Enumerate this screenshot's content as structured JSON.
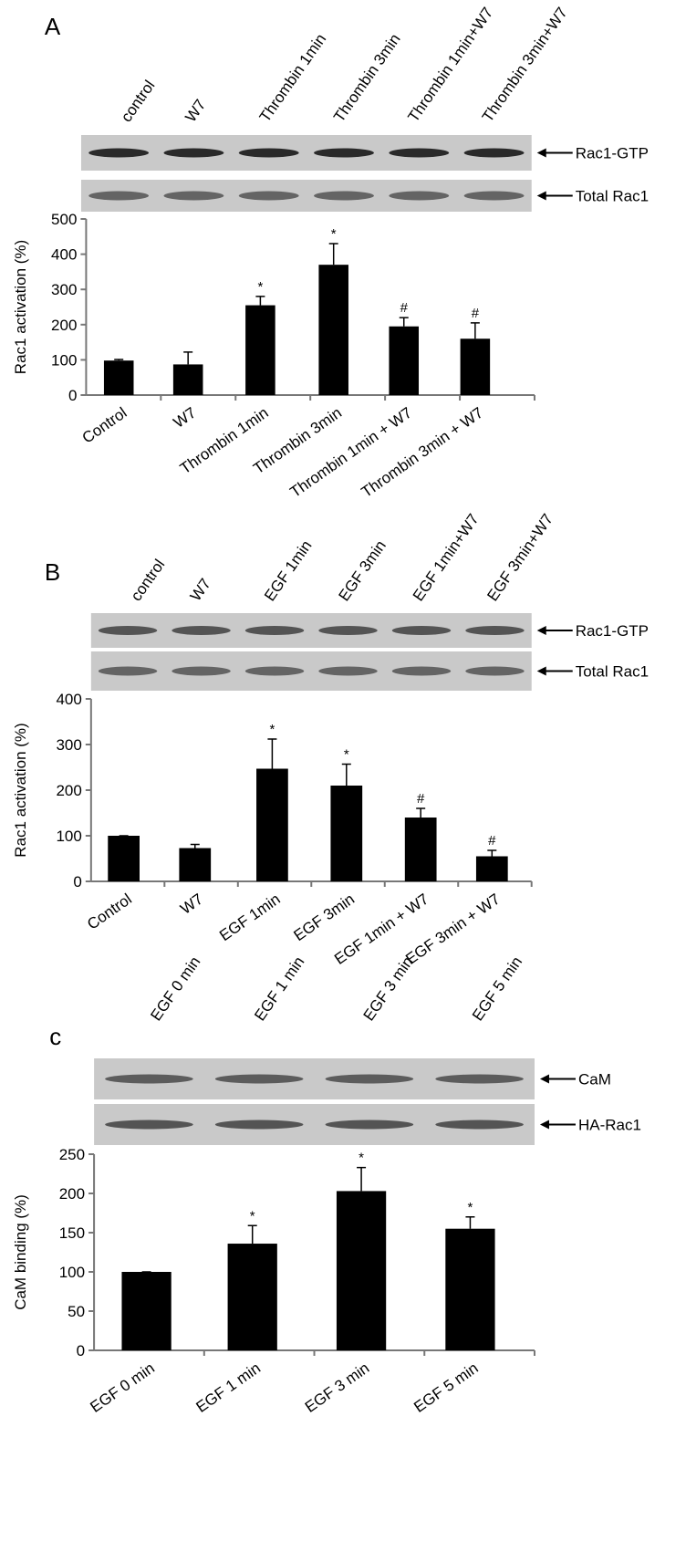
{
  "chart_data": [
    {
      "type": "bar",
      "panel": "A",
      "lanes": [
        "control",
        "W7",
        "Thrombin 1min",
        "Thrombin 3min",
        "Thrombin 1min+W7",
        "Thrombin 3min+W7"
      ],
      "blots": [
        "Rac1-GTP",
        "Total Rac1"
      ],
      "y_label": "Rac1 activation (%)",
      "categories": [
        "Control",
        "W7",
        "Thrombin 1min",
        "Thrombin 3min",
        "Thrombin 1min + W7",
        "Thrombin 3min + W7"
      ],
      "values": [
        98,
        87,
        255,
        370,
        195,
        160
      ],
      "errors": [
        3,
        35,
        25,
        60,
        25,
        45
      ],
      "markers": [
        null,
        null,
        "*",
        "*",
        "#",
        "#"
      ],
      "color": "#000000",
      "ylim": [
        0,
        500
      ],
      "yticks": [
        0,
        100,
        200,
        300,
        400,
        500
      ]
    },
    {
      "type": "bar",
      "panel": "B",
      "lanes": [
        "control",
        "W7",
        "EGF 1min",
        "EGF 3min",
        "EGF 1min+W7",
        "EGF 3min+W7"
      ],
      "blots": [
        "Rac1-GTP",
        "Total Rac1"
      ],
      "y_label": "Rac1 activation (%)",
      "categories": [
        "Control",
        "W7",
        "EGF 1min",
        "EGF 3min",
        "EGF 1min + W7",
        "EGF 3min + W7"
      ],
      "values": [
        100,
        73,
        247,
        210,
        140,
        55
      ],
      "errors": [
        0,
        8,
        65,
        47,
        20,
        13
      ],
      "markers": [
        null,
        null,
        "*",
        "*",
        "#",
        "#"
      ],
      "color": "#000000",
      "ylim": [
        0,
        400
      ],
      "yticks": [
        0,
        100,
        200,
        300,
        400
      ]
    },
    {
      "type": "bar",
      "panel": "c",
      "lanes": [
        "EGF 0 min",
        "EGF 1 min",
        "EGF 3 min",
        "EGF 5 min"
      ],
      "blots": [
        "CaM",
        "HA-Rac1"
      ],
      "y_label": "CaM binding (%)",
      "categories": [
        "EGF 0 min",
        "EGF 1 min",
        "EGF 3 min",
        "EGF 5 min"
      ],
      "values": [
        100,
        136,
        203,
        155
      ],
      "errors": [
        0,
        23,
        30,
        15
      ],
      "markers": [
        null,
        "*",
        "*",
        "*"
      ],
      "color": "#000000",
      "ylim": [
        0,
        250
      ],
      "yticks": [
        0,
        50,
        100,
        150,
        200,
        250
      ]
    }
  ]
}
